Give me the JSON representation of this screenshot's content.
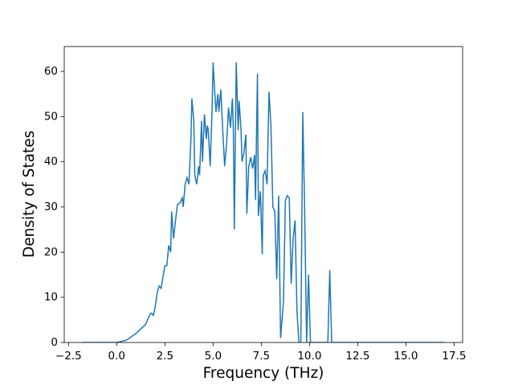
{
  "chart_data": {
    "type": "line",
    "xlabel": "Frequency (THz)",
    "ylabel": "Density of States",
    "series": [
      {
        "color": "#1f77b4",
        "x": [
          -1.78,
          0.0,
          0.5,
          1.0,
          1.5,
          1.7,
          1.8,
          1.9,
          2.0,
          2.1,
          2.2,
          2.3,
          2.5,
          2.6,
          2.7,
          2.8,
          2.85,
          2.95,
          3.05,
          3.15,
          3.3,
          3.4,
          3.45,
          3.55,
          3.65,
          3.75,
          3.85,
          3.9,
          4.0,
          4.05,
          4.15,
          4.25,
          4.3,
          4.4,
          4.45,
          4.55,
          4.65,
          4.7,
          4.75,
          4.85,
          4.95,
          5.0,
          5.05,
          5.15,
          5.25,
          5.3,
          5.4,
          5.5,
          5.6,
          5.7,
          5.8,
          5.9,
          6.0,
          6.05,
          6.1,
          6.2,
          6.3,
          6.35,
          6.45,
          6.5,
          6.6,
          6.7,
          6.75,
          6.85,
          6.95,
          7.05,
          7.15,
          7.2,
          7.3,
          7.35,
          7.45,
          7.55,
          7.6,
          7.7,
          7.8,
          7.9,
          8.0,
          8.1,
          8.2,
          8.3,
          8.4,
          8.5,
          8.65,
          8.75,
          8.85,
          8.95,
          9.05,
          9.15,
          9.25,
          9.35,
          9.45,
          9.55,
          9.65,
          9.75,
          9.85,
          9.95,
          10.05,
          10.95,
          11.05,
          11.15,
          17.0
        ],
        "values": [
          0,
          0,
          0.5,
          2,
          4,
          6,
          6.5,
          6,
          8,
          11,
          12.5,
          12,
          17,
          17,
          21.5,
          20,
          29,
          23,
          27,
          30.5,
          31,
          32,
          30,
          35,
          36.5,
          35,
          45,
          54,
          49,
          37,
          35,
          39,
          37,
          49,
          40,
          50.5,
          45,
          48,
          47,
          39,
          52,
          62,
          58,
          51,
          55,
          51,
          56,
          47,
          39,
          44,
          52,
          47.5,
          54,
          47,
          25,
          62,
          47,
          53.5,
          47,
          40,
          42,
          46,
          28.5,
          39,
          41,
          38.5,
          41.5,
          31.5,
          59.5,
          28,
          33.5,
          19.5,
          37,
          38,
          35,
          55.5,
          48,
          30,
          29,
          14,
          32.5,
          1,
          9,
          31.5,
          32.5,
          32,
          13,
          23,
          27,
          7,
          0,
          0,
          51,
          29,
          0,
          15,
          0,
          0,
          16,
          0,
          0
        ]
      }
    ],
    "xlim": [
      -2.72,
      17.94
    ],
    "ylim": [
      0,
      65.5
    ],
    "xticks": [
      {
        "value": -2.5,
        "label": "−2.5"
      },
      {
        "value": 0,
        "label": "0.0"
      },
      2.5,
      {
        "value": 5,
        "label": "5.0"
      },
      7.5,
      {
        "value": 10,
        "label": "10.0"
      },
      12.5,
      {
        "value": 15,
        "label": "15.0"
      },
      17.5
    ],
    "yticks": [
      0,
      10,
      20,
      30,
      40,
      50,
      60
    ]
  }
}
